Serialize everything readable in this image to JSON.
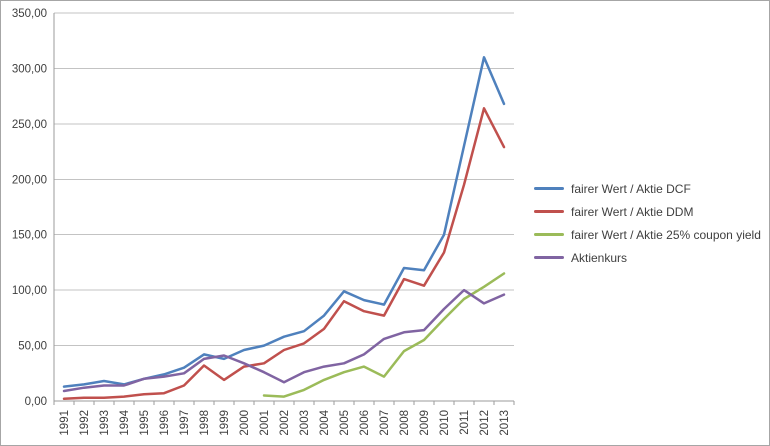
{
  "chart_data": {
    "type": "line",
    "title": "",
    "xlabel": "",
    "ylabel": "",
    "categories": [
      "1991",
      "1992",
      "1993",
      "1994",
      "1995",
      "1996",
      "1997",
      "1998",
      "1999",
      "2000",
      "2001",
      "2002",
      "2003",
      "2004",
      "2005",
      "2006",
      "2007",
      "2008",
      "2009",
      "2010",
      "2011",
      "2012",
      "2013"
    ],
    "series": [
      {
        "name": "fairer Wert / Aktie DCF",
        "color": "#4F81BD",
        "values": [
          13,
          15,
          18,
          15,
          20,
          24,
          30,
          42,
          38,
          46,
          50,
          58,
          63,
          77,
          99,
          91,
          87,
          120,
          118,
          150,
          230,
          310,
          268
        ]
      },
      {
        "name": "fairer Wert / Aktie DDM",
        "color": "#C0504D",
        "values": [
          2,
          3,
          3,
          4,
          6,
          7,
          14,
          32,
          19,
          31,
          34,
          46,
          52,
          65,
          90,
          81,
          77,
          110,
          104,
          134,
          195,
          264,
          229
        ]
      },
      {
        "name": "fairer Wert / Aktie 25% coupon yield",
        "color": "#9BBB59",
        "values": [
          null,
          null,
          null,
          null,
          null,
          null,
          null,
          null,
          null,
          null,
          5,
          4,
          10,
          19,
          26,
          31,
          22,
          45,
          55,
          74,
          92,
          103,
          115
        ]
      },
      {
        "name": "Aktienkurs",
        "color": "#8064A2",
        "values": [
          9,
          12,
          14,
          14,
          20,
          22,
          25,
          38,
          41,
          34,
          26,
          17,
          26,
          31,
          34,
          42,
          56,
          62,
          64,
          83,
          100,
          88,
          96
        ]
      }
    ],
    "y_axis": {
      "min": 0,
      "max": 350,
      "step": 50,
      "tick_labels": [
        "0,00",
        "50,00",
        "100,00",
        "150,00",
        "200,00",
        "250,00",
        "300,00",
        "350,00"
      ]
    },
    "x_axis": {
      "label_rotation": -90
    },
    "grid": true,
    "legend_position": "right"
  },
  "style": {
    "gridline_color": "#C3C3C3",
    "axis_color": "#9B9B9B",
    "tick_color": "#9B9B9B",
    "text_color": "#3F3F3F",
    "background_color": "#FFFFFF",
    "line_width": 2.5
  }
}
